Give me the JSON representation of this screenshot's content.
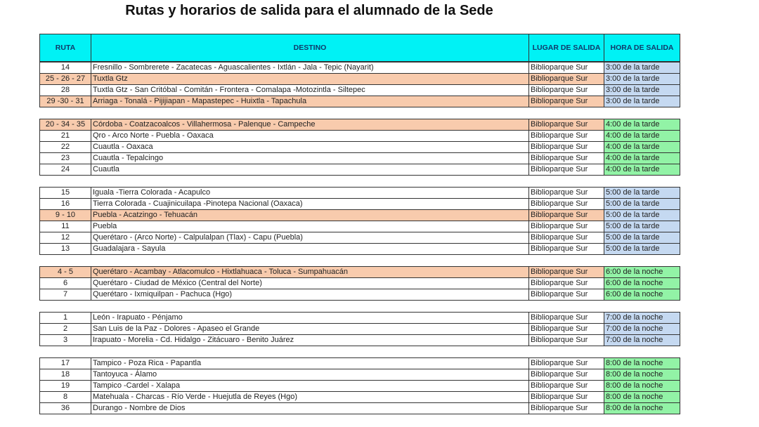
{
  "title": "Rutas y horarios de salida para el alumnado de la Sede",
  "headers": {
    "ruta": "RUTA",
    "destino": "DESTINO",
    "lugar": "LUGAR DE SALIDA",
    "hora": "HORA DE SALIDA"
  },
  "colors": {
    "header": "#00f2f5",
    "highlight": "#f8cbad",
    "tarde_3": "#c5d9f1",
    "tarde_4": "#92f3a6"
  },
  "groups": [
    {
      "hora": "3:00 de la tarde",
      "color": "blue",
      "rows": [
        {
          "ruta": "14",
          "destino": "Fresnillo - Sombrerete - Zacatecas - Aguascalientes - Ixtlán - Jala - Tepic (Nayarit)",
          "lugar": "Biblioparque Sur",
          "highlight": false
        },
        {
          "ruta": "25 - 26 - 27",
          "destino": "Tuxtla Gtz",
          "lugar": "Biblioparque Sur",
          "highlight": true
        },
        {
          "ruta": "28",
          "destino": "Tuxtla Gtz - San Critóbal - Comitán - Frontera - Comalapa -Motozintla - Siltepec",
          "lugar": "Biblioparque Sur",
          "highlight": false
        },
        {
          "ruta": "29 -30 - 31",
          "destino": "Arriaga - Tonalá - Pijijiapan - Mapastepec - Huixtla - Tapachula",
          "lugar": "Biblioparque Sur",
          "highlight": true
        }
      ]
    },
    {
      "hora": "4:00 de la tarde",
      "color": "green",
      "rows": [
        {
          "ruta": "20 - 34 - 35",
          "destino": "Córdoba - Coatzacoalcos - Villahermosa - Palenque - Campeche",
          "lugar": "Biblioparque Sur",
          "highlight": true
        },
        {
          "ruta": "21",
          "destino": "Qro - Arco Norte - Puebla - Oaxaca",
          "lugar": "Biblioparque Sur",
          "highlight": false
        },
        {
          "ruta": "22",
          "destino": "Cuautla - Oaxaca",
          "lugar": "Biblioparque Sur",
          "highlight": false
        },
        {
          "ruta": "23",
          "destino": "Cuautla - Tepalcingo",
          "lugar": "Biblioparque Sur",
          "highlight": false
        },
        {
          "ruta": "24",
          "destino": "Cuautla",
          "lugar": "Biblioparque Sur",
          "highlight": false
        }
      ]
    },
    {
      "hora": "5:00 de la tarde",
      "color": "blue",
      "rows": [
        {
          "ruta": "15",
          "destino": "Iguala -Tierra Colorada - Acapulco",
          "lugar": "Biblioparque Sur",
          "highlight": false
        },
        {
          "ruta": "16",
          "destino": "Tierra Colorada - Cuajinicuilapa -Pinotepa Nacional (Oaxaca)",
          "lugar": "Biblioparque Sur",
          "highlight": false
        },
        {
          "ruta": "9 - 10",
          "destino": "Puebla - Acatzingo - Tehuacán",
          "lugar": "Biblioparque Sur",
          "highlight": true
        },
        {
          "ruta": "11",
          "destino": "Puebla",
          "lugar": "Biblioparque Sur",
          "highlight": false
        },
        {
          "ruta": "12",
          "destino": "Querétaro - (Arco Norte) - Calpulalpan (Tlax) - Capu (Puebla)",
          "lugar": "Biblioparque Sur",
          "highlight": false
        },
        {
          "ruta": "13",
          "destino": "Guadalajara - Sayula",
          "lugar": "Biblioparque Sur",
          "highlight": false
        }
      ]
    },
    {
      "hora": "6:00 de la noche",
      "color": "green",
      "rows": [
        {
          "ruta": "4 - 5",
          "destino": "Querétaro - Acambay - Atlacomulco - Hixtlahuaca - Toluca - Sumpahuacán",
          "lugar": "Biblioparque Sur",
          "highlight": true
        },
        {
          "ruta": "6",
          "destino": "Querétaro - Ciudad de México (Central del Norte)",
          "lugar": "Biblioparque Sur",
          "highlight": false
        },
        {
          "ruta": "7",
          "destino": "Querétaro - Ixmiquilpan - Pachuca (Hgo)",
          "lugar": "Biblioparque Sur",
          "highlight": false
        }
      ]
    },
    {
      "hora": "7:00 de la noche",
      "color": "blue",
      "rows": [
        {
          "ruta": "1",
          "destino": "León - Irapuato - Pénjamo",
          "lugar": "Biblioparque Sur",
          "highlight": false
        },
        {
          "ruta": "2",
          "destino": "San Luis de la Paz - Dolores - Apaseo el Grande",
          "lugar": "Biblioparque Sur",
          "highlight": false
        },
        {
          "ruta": "3",
          "destino": "Irapuato - Morelia - Cd. Hidalgo - Zitácuaro - Benito Juárez",
          "lugar": "Biblioparque Sur",
          "highlight": false
        }
      ]
    },
    {
      "hora": "8:00 de la noche",
      "color": "green",
      "rows": [
        {
          "ruta": "17",
          "destino": "Tampico - Poza Rica - Papantla",
          "lugar": "Biblioparque Sur",
          "highlight": false
        },
        {
          "ruta": "18",
          "destino": "Tantoyuca - Álamo",
          "lugar": "Biblioparque Sur",
          "highlight": false
        },
        {
          "ruta": "19",
          "destino": "Tampico -Cardel - Xalapa",
          "lugar": "Biblioparque Sur",
          "highlight": false
        },
        {
          "ruta": "8",
          "destino": "Matehuala - Charcas - Río Verde - Huejutla de Reyes (Hgo)",
          "lugar": "Biblioparque Sur",
          "highlight": false
        },
        {
          "ruta": "36",
          "destino": "Durango - Nombre de Dios",
          "lugar": "Biblioparque Sur",
          "highlight": false
        }
      ]
    }
  ]
}
